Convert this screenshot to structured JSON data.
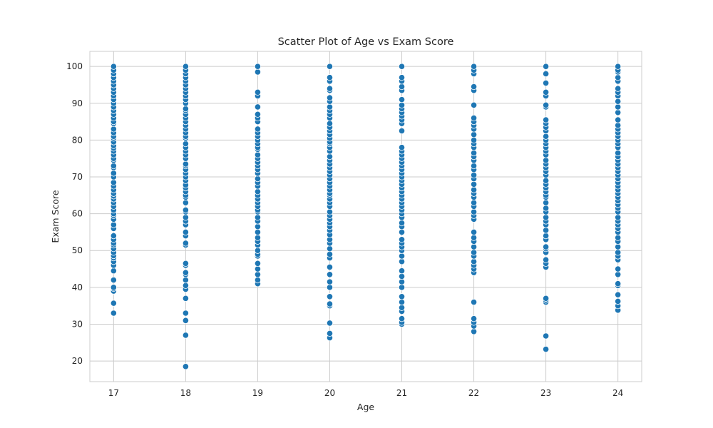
{
  "chart_data": {
    "type": "scatter",
    "title": "Scatter Plot of Age vs Exam Score",
    "xlabel": "Age",
    "ylabel": "Exam Score",
    "xlim": [
      16.67,
      24.33
    ],
    "ylim": [
      14.4,
      104.1
    ],
    "x_ticks": [
      17,
      18,
      19,
      20,
      21,
      22,
      23,
      24
    ],
    "y_ticks": [
      20,
      30,
      40,
      50,
      60,
      70,
      80,
      90,
      100
    ],
    "grid": true,
    "marker_color": "#1f77b4",
    "marker_edge": "#ffffff",
    "series": [
      {
        "points": [
          {
            "x": 17,
            "y": [
              33,
              35.7,
              39,
              39.7,
              40,
              42,
              44.5,
              46,
              47,
              48,
              48.6,
              49.5,
              50.5,
              51.5,
              52,
              53,
              54,
              56,
              57,
              58.5,
              59.5,
              60,
              61,
              62,
              63,
              64,
              64.8,
              65.5,
              66.5,
              67.5,
              68.5,
              70,
              71,
              72.5,
              73,
              74.5,
              75,
              76,
              77,
              77.8,
              78.5,
              79.5,
              80.5,
              81,
              82,
              83,
              84.5,
              85,
              86,
              87,
              88,
              89,
              90,
              91,
              92,
              93,
              94,
              95,
              96,
              97,
              98,
              99,
              100
            ]
          },
          {
            "x": 18,
            "y": [
              18.5,
              27,
              31,
              33,
              37,
              39.5,
              40.5,
              42,
              43.5,
              44,
              46,
              46.5,
              51.5,
              52,
              54,
              55,
              57,
              58,
              59,
              60.5,
              61,
              63,
              64.5,
              65,
              66,
              67,
              67.8,
              69,
              70,
              71,
              72,
              73,
              73.5,
              75,
              76,
              77,
              78,
              79,
              80.5,
              81,
              82,
              83,
              84,
              85,
              86,
              87,
              88,
              88.5,
              90,
              91,
              92,
              93,
              94,
              95,
              96,
              97,
              98,
              99,
              100
            ]
          },
          {
            "x": 19,
            "y": [
              41,
              42,
              43.5,
              45,
              46.5,
              48.5,
              49,
              50,
              51.5,
              52.5,
              53.5,
              55,
              56.5,
              58,
              59,
              60.5,
              61,
              62,
              63,
              64,
              65,
              66,
              67.5,
              68.5,
              69.5,
              71,
              72,
              73,
              74,
              75,
              76,
              77.5,
              78,
              79,
              80,
              81,
              82,
              83,
              85,
              86,
              87,
              89,
              92,
              93,
              98.5,
              100
            ]
          },
          {
            "x": 20,
            "y": [
              26.3,
              27.5,
              30.3,
              35,
              35.5,
              37.5,
              40,
              41.5,
              43.5,
              45.5,
              48,
              49,
              50.5,
              52,
              53,
              54.3,
              55.5,
              56.5,
              57.5,
              58.5,
              59.5,
              60.5,
              62,
              63,
              64,
              65,
              65.5,
              66.5,
              67.5,
              68.5,
              69.5,
              70.5,
              71.5,
              72.5,
              73.5,
              74.5,
              75.5,
              77,
              78,
              79,
              79.5,
              80.5,
              81.5,
              82.5,
              83.5,
              84.5,
              86,
              87,
              88,
              89,
              90.5,
              91.5,
              93.5,
              94,
              96,
              97,
              100
            ]
          },
          {
            "x": 21,
            "y": [
              30,
              30.5,
              31.5,
              33.5,
              34.5,
              36,
              37.5,
              40,
              41.5,
              43,
              44.5,
              47,
              48.5,
              50,
              51,
              52,
              53,
              55,
              56.5,
              57.5,
              59,
              60,
              61,
              62,
              63,
              64,
              65,
              66,
              67,
              68,
              69,
              70,
              71,
              72,
              73,
              74,
              75,
              76,
              77,
              78,
              82.5,
              84.5,
              85.5,
              86.5,
              87.5,
              88.5,
              89.5,
              91,
              93.5,
              94.5,
              96,
              97,
              100
            ]
          },
          {
            "x": 22,
            "y": [
              28,
              29.5,
              30.5,
              31.5,
              36,
              44,
              45,
              46,
              47,
              48.5,
              49.5,
              51,
              52.5,
              53.5,
              55,
              58.5,
              59.5,
              60.5,
              62,
              63,
              64.5,
              65.5,
              66.5,
              68,
              69.5,
              70.5,
              72,
              73,
              74.5,
              75.5,
              76.5,
              78,
              79,
              80,
              81.5,
              83,
              84,
              85,
              86,
              89.5,
              93.5,
              94.5,
              98,
              99,
              100
            ]
          },
          {
            "x": 23,
            "y": [
              23.2,
              26.8,
              36,
              36.5,
              37,
              45.5,
              46.5,
              47.5,
              49.5,
              50.5,
              51,
              53,
              54,
              55.5,
              57,
              58,
              59,
              60.5,
              61.5,
              63,
              64.5,
              65,
              66,
              67,
              68,
              69,
              70.5,
              71.5,
              72.5,
              73.5,
              74.5,
              76,
              77,
              78,
              79,
              80,
              81,
              82.5,
              83.5,
              84.5,
              85.5,
              89,
              89.5,
              92,
              93,
              95.5,
              98,
              100
            ]
          },
          {
            "x": 24,
            "y": [
              33.8,
              35,
              36.2,
              38,
              40.5,
              41,
              43.5,
              45,
              47.5,
              48.5,
              49.5,
              51,
              52.5,
              53.5,
              55,
              56,
              57,
              58,
              59,
              60.5,
              61.5,
              62.5,
              63.5,
              64.5,
              65.5,
              66.5,
              67.5,
              68.5,
              69.5,
              70.5,
              71.5,
              72.5,
              73.5,
              74.5,
              75.5,
              76.5,
              78,
              79,
              80,
              81,
              82,
              83,
              84,
              85.5,
              87.5,
              89,
              90.5,
              92,
              93,
              94,
              96,
              97,
              98.5,
              99,
              100
            ]
          }
        ]
      }
    ]
  }
}
